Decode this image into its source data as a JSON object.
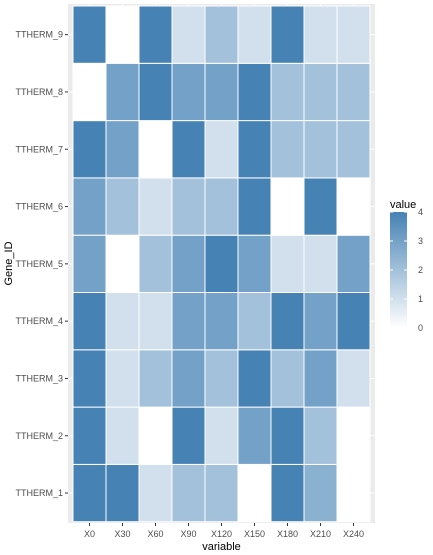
{
  "chart_data": {
    "type": "heatmap",
    "title": "",
    "xlabel": "variable",
    "ylabel": "Gene_ID",
    "x_categories": [
      "X0",
      "X30",
      "X60",
      "X90",
      "X120",
      "X150",
      "X180",
      "X210",
      "X240"
    ],
    "y_categories": [
      "TTHERM_1",
      "TTHERM_2",
      "TTHERM_3",
      "TTHERM_4",
      "TTHERM_5",
      "TTHERM_6",
      "TTHERM_7",
      "TTHERM_8",
      "TTHERM_9"
    ],
    "values": [
      [
        4,
        4,
        1,
        2,
        2,
        0,
        4,
        2.5,
        0
      ],
      [
        4,
        1,
        0,
        4,
        1,
        3,
        4,
        2,
        0
      ],
      [
        4,
        1,
        2,
        3,
        2,
        4,
        2,
        3,
        1
      ],
      [
        4,
        1,
        1,
        3,
        3,
        2,
        4,
        3,
        4
      ],
      [
        3,
        0,
        2,
        3,
        4,
        3,
        1,
        1,
        3
      ],
      [
        3,
        2,
        1,
        2,
        2,
        4,
        0,
        4,
        0
      ],
      [
        4,
        3,
        0,
        4,
        1,
        4,
        2,
        2,
        2
      ],
      [
        0,
        3,
        4,
        3,
        3,
        4,
        2,
        2,
        2
      ],
      [
        4,
        0,
        4,
        1,
        2,
        1,
        4,
        1,
        1
      ]
    ],
    "value_range": [
      0,
      4
    ],
    "color_low": "#ffffff",
    "color_high": "#4682b4",
    "legend": {
      "title": "value",
      "ticks": [
        0,
        1,
        2,
        3,
        4
      ],
      "tick_labels": [
        "0",
        "1",
        "2",
        "3",
        "4"
      ],
      "placement": "right"
    },
    "panel_background": "#ebebeb",
    "grid": true,
    "tile_border": "#ffffff"
  }
}
